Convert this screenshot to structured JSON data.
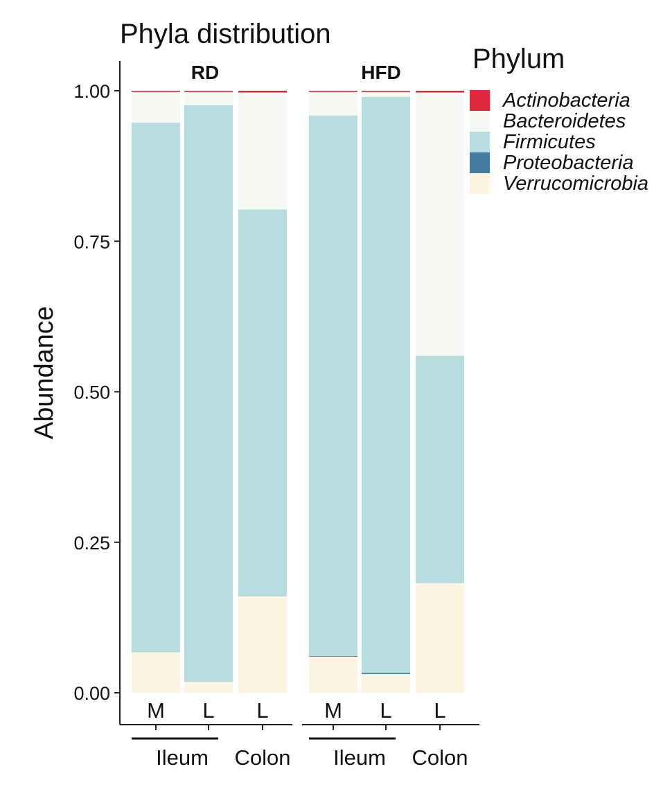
{
  "chart_data": {
    "type": "bar",
    "stacked": true,
    "title": "Phyla distribution",
    "ylabel": "Abundance",
    "xlabel": "",
    "ylim": [
      0,
      1
    ],
    "yticks": [
      "0.00",
      "0.25",
      "0.50",
      "0.75",
      "1.00"
    ],
    "legend": {
      "title": "Phylum",
      "placement": "right"
    },
    "phyla": [
      {
        "name": "Actinobacteria",
        "color": "#E0293E"
      },
      {
        "name": "Bacteroidetes",
        "color": "#F6F9F3"
      },
      {
        "name": "Firmicutes",
        "color": "#B7DDE1"
      },
      {
        "name": "Proteobacteria",
        "color": "#457CA3"
      },
      {
        "name": "Verrucomicrobia",
        "color": "#FDF5E2"
      }
    ],
    "facets": [
      {
        "label": "RD",
        "bars": [
          {
            "label": "M",
            "values": {
              "Verrucomicrobia": 0.067,
              "Proteobacteria": 0.0,
              "Firmicutes": 0.88,
              "Bacteroidetes": 0.051,
              "Actinobacteria": 0.002
            }
          },
          {
            "label": "L",
            "values": {
              "Verrucomicrobia": 0.018,
              "Proteobacteria": 0.0,
              "Firmicutes": 0.958,
              "Bacteroidetes": 0.022,
              "Actinobacteria": 0.002
            }
          },
          {
            "label": "L",
            "values": {
              "Verrucomicrobia": 0.16,
              "Proteobacteria": 0.0,
              "Firmicutes": 0.643,
              "Bacteroidetes": 0.194,
              "Actinobacteria": 0.003
            }
          }
        ],
        "groups": [
          {
            "label": "Ileum",
            "bars": [
              0,
              1
            ],
            "underline": true
          },
          {
            "label": "Colon",
            "bars": [
              2
            ],
            "underline": false
          }
        ]
      },
      {
        "label": "HFD",
        "bars": [
          {
            "label": "M",
            "values": {
              "Verrucomicrobia": 0.06,
              "Proteobacteria": 0.001,
              "Firmicutes": 0.898,
              "Bacteroidetes": 0.039,
              "Actinobacteria": 0.002
            }
          },
          {
            "label": "L",
            "values": {
              "Verrucomicrobia": 0.031,
              "Proteobacteria": 0.002,
              "Firmicutes": 0.957,
              "Bacteroidetes": 0.008,
              "Actinobacteria": 0.002
            }
          },
          {
            "label": "L",
            "values": {
              "Verrucomicrobia": 0.182,
              "Proteobacteria": 0.0,
              "Firmicutes": 0.378,
              "Bacteroidetes": 0.437,
              "Actinobacteria": 0.003
            }
          }
        ],
        "groups": [
          {
            "label": "Ileum",
            "bars": [
              0,
              1
            ],
            "underline": true
          },
          {
            "label": "Colon",
            "bars": [
              2
            ],
            "underline": false
          }
        ]
      }
    ]
  }
}
